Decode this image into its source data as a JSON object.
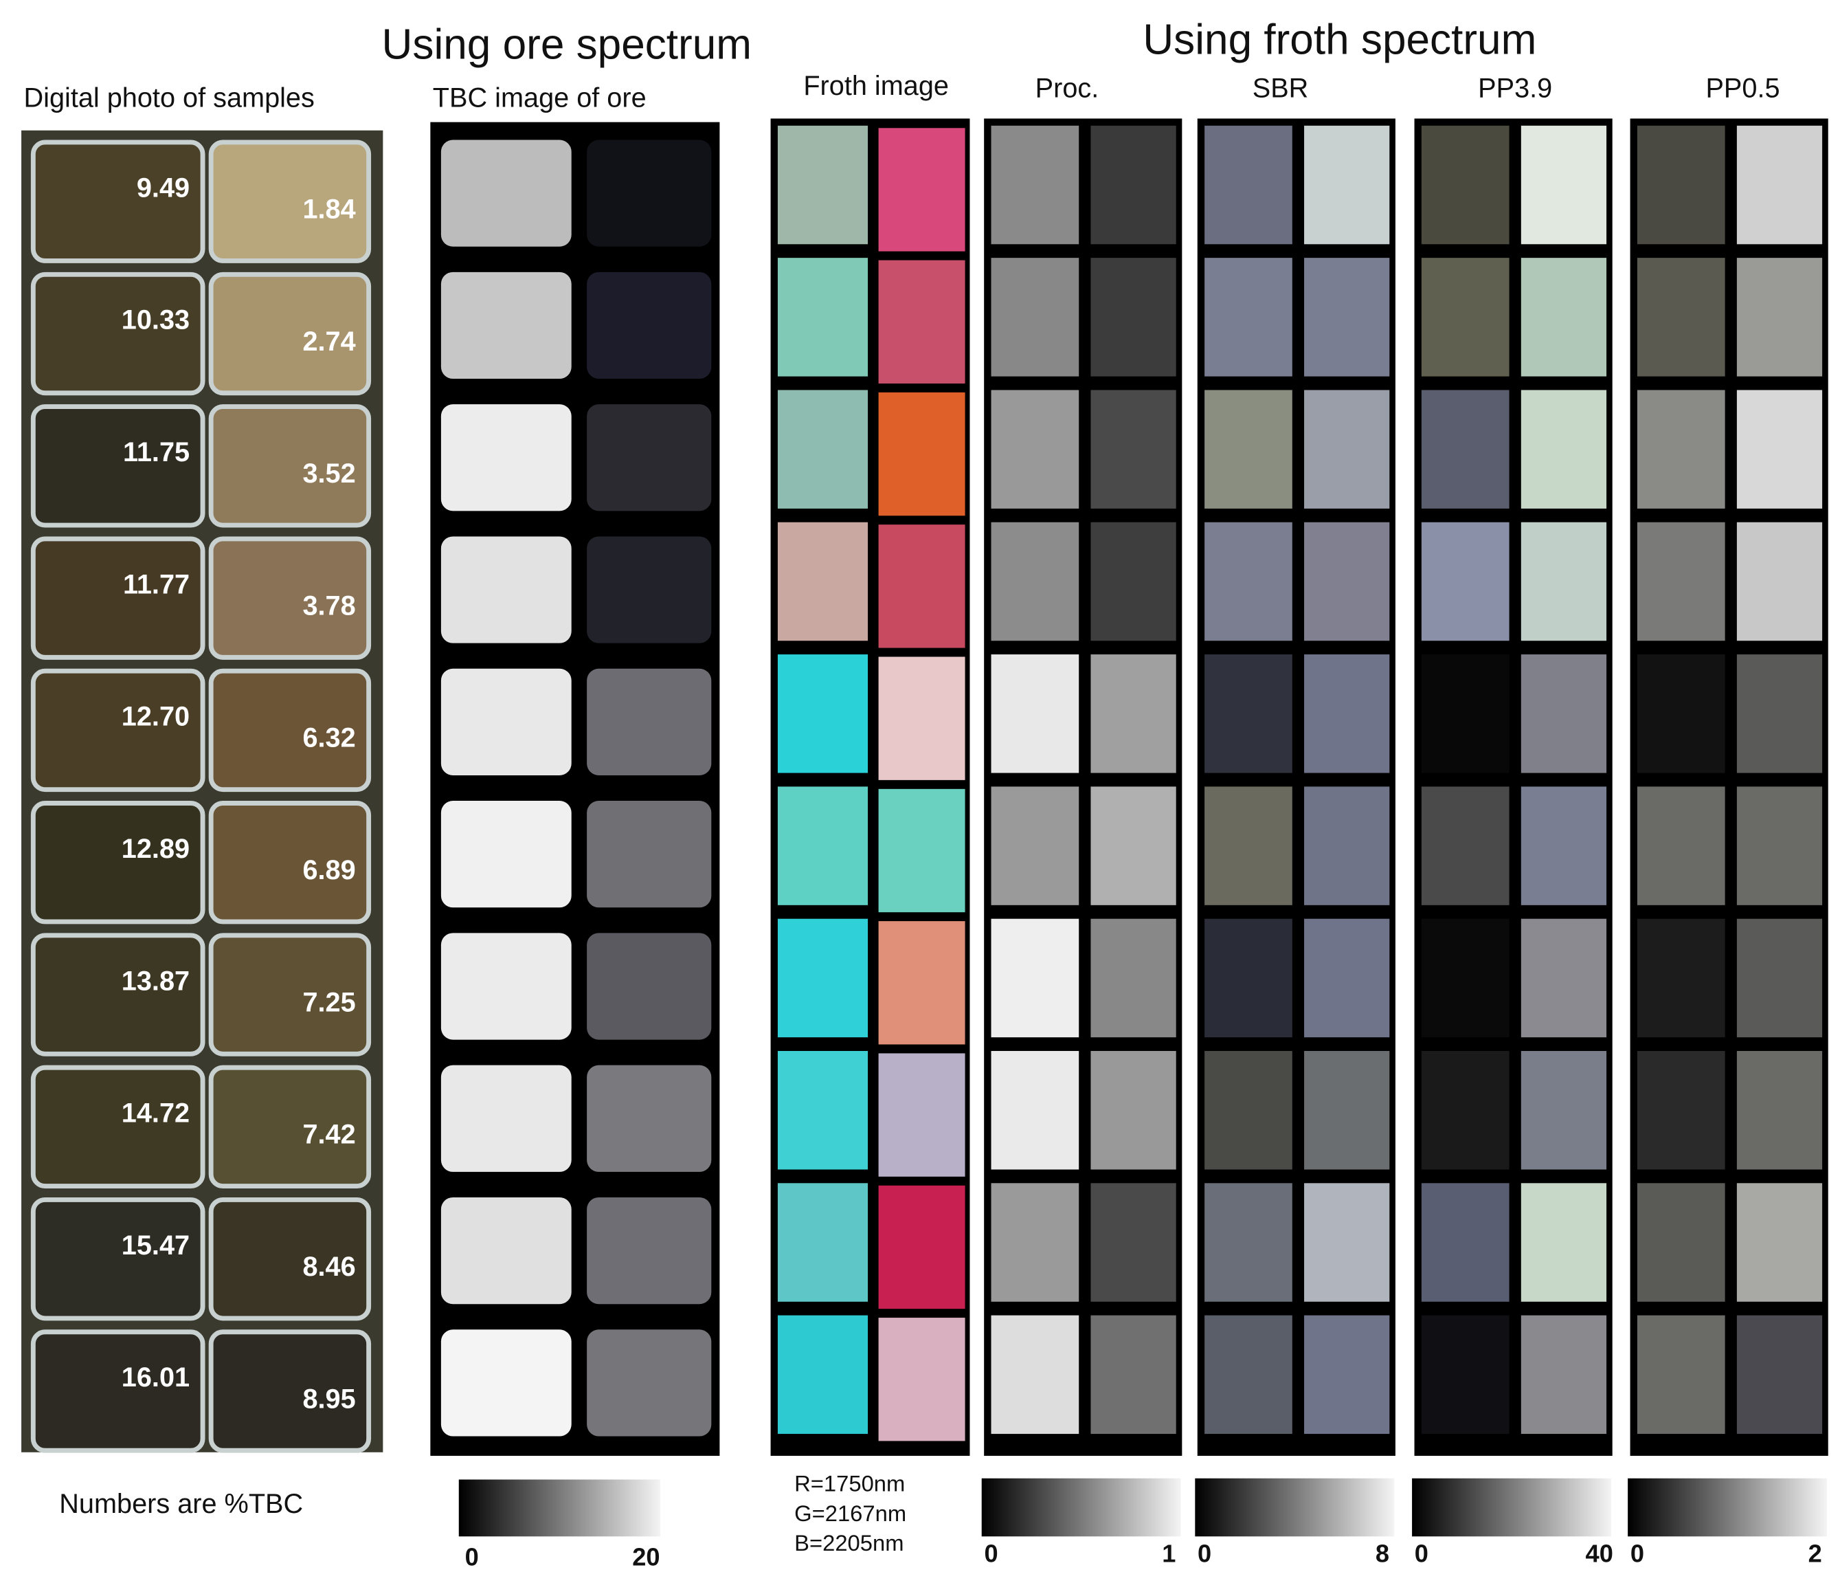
{
  "headers": {
    "ore": "Using ore spectrum",
    "froth": "Using froth spectrum"
  },
  "photo": {
    "title": "Digital photo of samples",
    "left": [
      "9.49",
      "10.33",
      "11.75",
      "11.77",
      "12.70",
      "12.89",
      "13.87",
      "14.72",
      "15.47",
      "16.01"
    ],
    "right": [
      "1.84",
      "2.74",
      "3.52",
      "3.78",
      "6.32",
      "6.89",
      "7.25",
      "7.42",
      "8.46",
      "8.95"
    ],
    "note": "Numbers are %TBC"
  },
  "tbc": {
    "title": "TBC image of ore",
    "scale": [
      "0",
      "20"
    ]
  },
  "froth": {
    "title": "Froth image",
    "bands": [
      "R=1750nm",
      "G=2167nm",
      "B=2205nm"
    ]
  },
  "panels": [
    {
      "title": "Proc.",
      "scale": [
        "0",
        "1"
      ]
    },
    {
      "title": "SBR",
      "scale": [
        "0",
        "8"
      ]
    },
    {
      "title": "PP3.9",
      "scale": [
        "0",
        "40"
      ]
    },
    {
      "title": "PP0.5",
      "scale": [
        "0",
        "2"
      ]
    }
  ]
}
